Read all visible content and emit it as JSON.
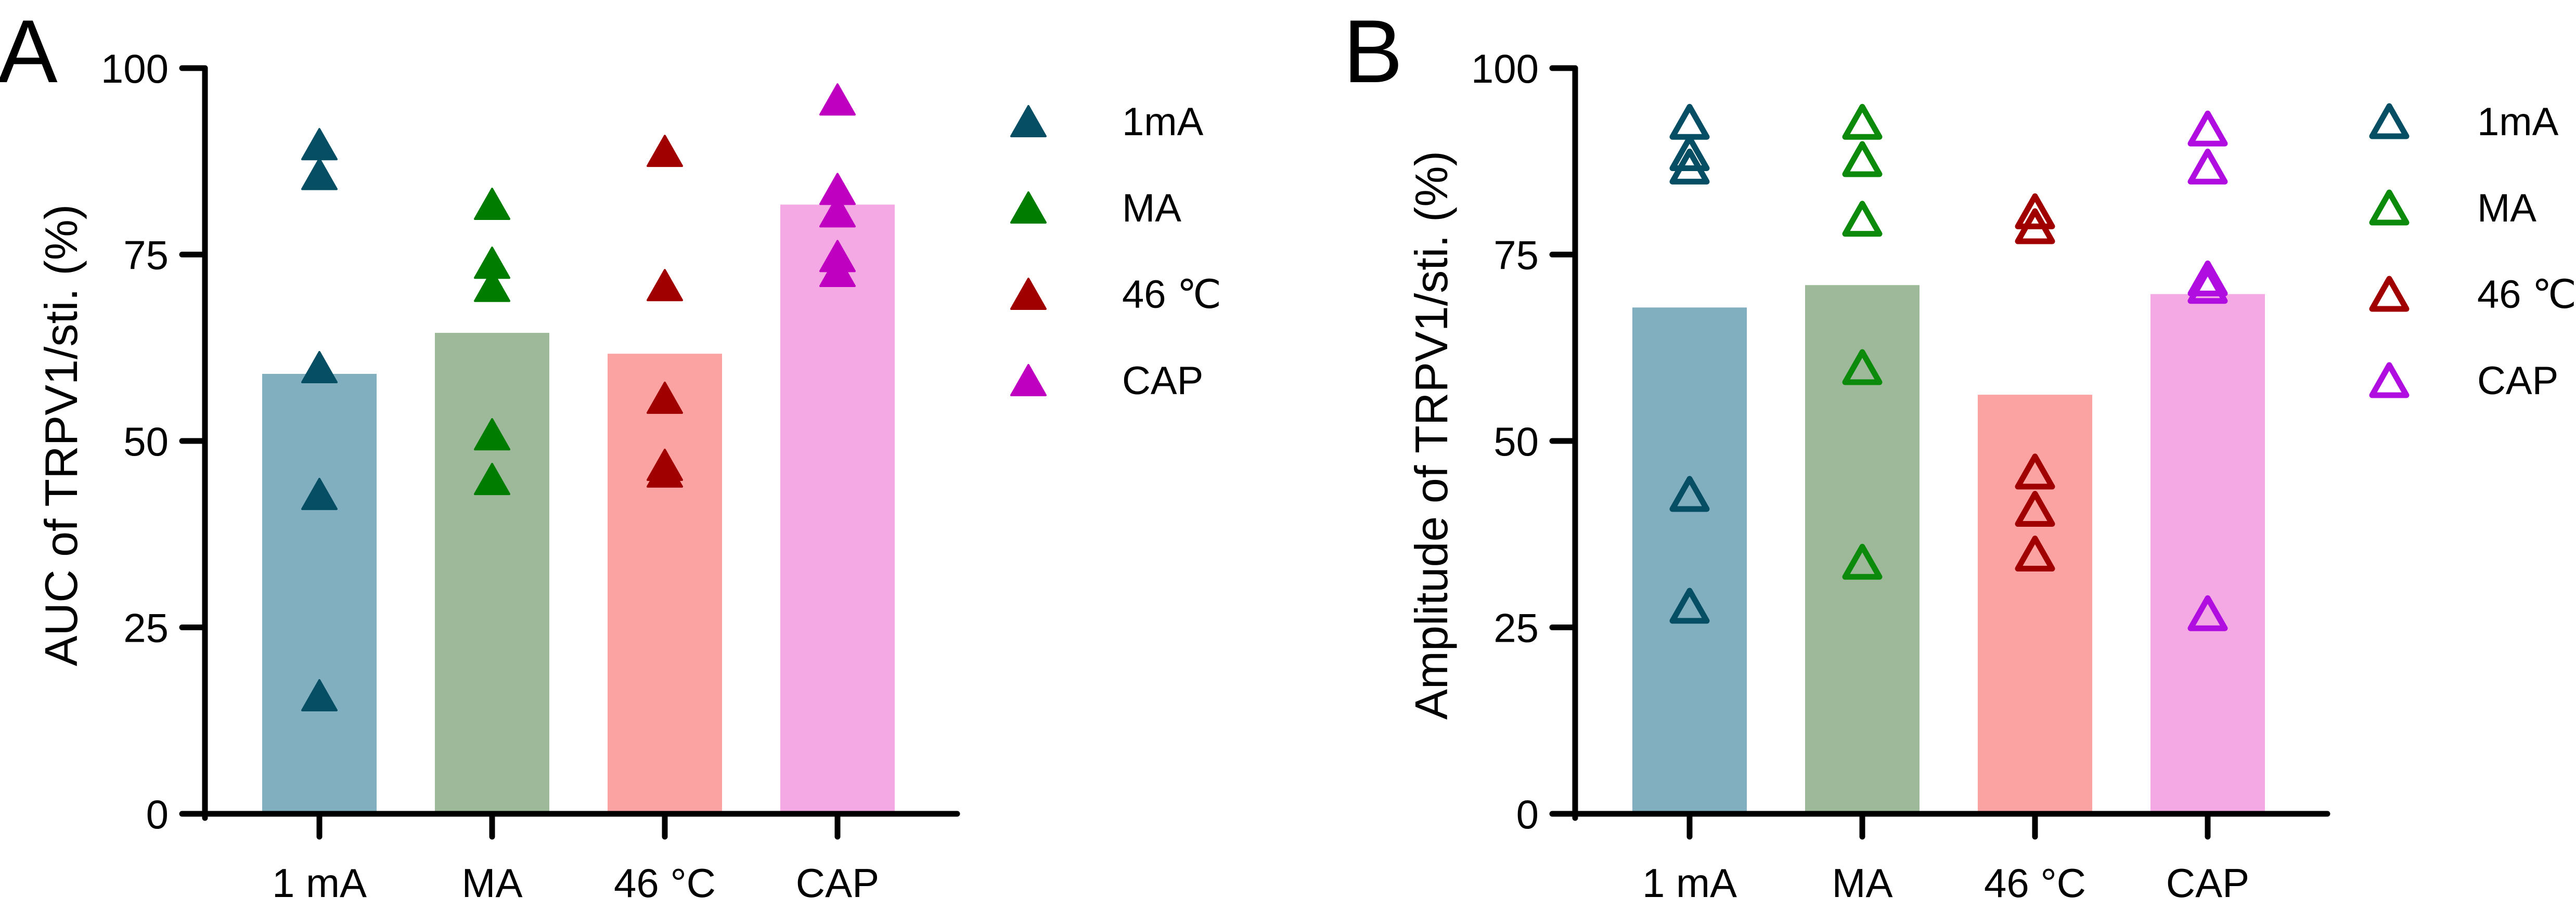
{
  "figure": {
    "panels": [
      "A",
      "B"
    ]
  },
  "chart_data": [
    {
      "panel": "A",
      "type": "bar",
      "title": "",
      "xlabel": "",
      "ylabel": "AUC of TRPV1/sti.  (%)",
      "ylim": [
        0,
        100
      ],
      "yticks": [
        0,
        25,
        50,
        75,
        100
      ],
      "grid": false,
      "marker_style": "filled-triangle",
      "legend_position": "right",
      "categories": [
        "1 mA",
        "MA",
        "46 °C",
        "CAP"
      ],
      "legend": [
        "1mA",
        "MA",
        "46 ℃",
        "CAP"
      ],
      "bar_colors": [
        "#82afc0",
        "#9db99a",
        "#fba3a3",
        "#f5a9e4"
      ],
      "point_colors": [
        "#054e63",
        "#007d00",
        "#a00000",
        "#c000c0"
      ],
      "values": [
        59.0,
        64.5,
        61.7,
        81.7
      ],
      "points": [
        [
          89.8,
          85.8,
          59.9,
          42.9,
          15.9
        ],
        [
          81.8,
          73.9,
          70.8,
          50.9,
          44.9
        ],
        [
          88.9,
          70.9,
          55.8,
          46.8,
          45.9
        ],
        [
          95.8,
          83.8,
          80.8,
          74.8,
          72.8
        ]
      ]
    },
    {
      "panel": "B",
      "type": "bar",
      "title": "",
      "xlabel": "",
      "ylabel": "Amplitude of TRPV1/sti.  (%)",
      "ylim": [
        0,
        100
      ],
      "yticks": [
        0,
        25,
        50,
        75,
        100
      ],
      "grid": false,
      "marker_style": "open-triangle",
      "legend_position": "right",
      "categories": [
        "1 mA",
        "MA",
        "46 °C",
        "CAP"
      ],
      "legend": [
        "1mA",
        "MA",
        "46 ℃",
        "CAP"
      ],
      "bar_colors": [
        "#82afc0",
        "#9db99a",
        "#fba3a3",
        "#f5a9e4"
      ],
      "point_colors": [
        "#054e63",
        "#0b8a0b",
        "#a00000",
        "#b00ee0"
      ],
      "values": [
        67.9,
        70.9,
        56.2,
        69.7
      ],
      "points": [
        [
          92.8,
          88.6,
          86.8,
          42.9,
          27.9
        ],
        [
          92.8,
          87.8,
          79.8,
          59.9,
          33.8
        ],
        [
          80.8,
          78.8,
          45.9,
          40.9,
          34.9
        ],
        [
          91.9,
          86.8,
          71.8,
          70.8,
          26.9
        ]
      ]
    }
  ]
}
